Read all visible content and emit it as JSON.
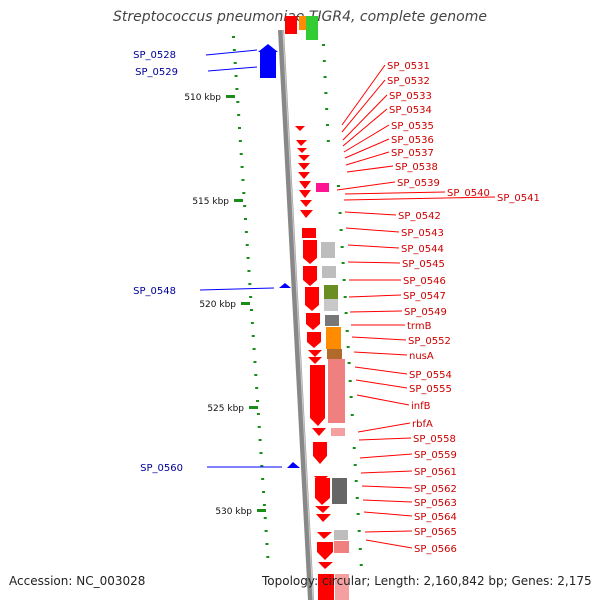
{
  "title": "Streptococcus pneumoniae TIGR4, complete genome",
  "footer": {
    "accession": "Accession: NC_003028",
    "summary": "Topology: circular; Length: 2,160,842 bp; Genes: 2,175"
  },
  "colors": {
    "forward": "#ff0000",
    "reverse": "#0000ff",
    "label_red": "#cc0000",
    "label_blue": "#000099",
    "tick": "#1a8c1a",
    "backbone": "#888888"
  },
  "kbp_labels": [
    "510 kbp",
    "515 kbp",
    "520 kbp",
    "525 kbp",
    "530 kbp"
  ],
  "left_labels": [
    "SP_0528",
    "SP_0529",
    "SP_0548",
    "SP_0560"
  ],
  "right_labels": [
    "SP_0531",
    "SP_0532",
    "SP_0533",
    "SP_0534",
    "SP_0535",
    "SP_0536",
    "SP_0537",
    "SP_0538",
    "SP_0539",
    "SP_0540",
    "SP_0541",
    "SP_0542",
    "SP_0543",
    "SP_0544",
    "SP_0545",
    "SP_0546",
    "SP_0547",
    "SP_0549",
    "trmB",
    "SP_0552",
    "nusA",
    "SP_0554",
    "SP_0555",
    "infB",
    "rbfA",
    "SP_0558",
    "SP_0559",
    "SP_0561",
    "SP_0562",
    "SP_0563",
    "SP_0564",
    "SP_0565",
    "SP_0566"
  ]
}
